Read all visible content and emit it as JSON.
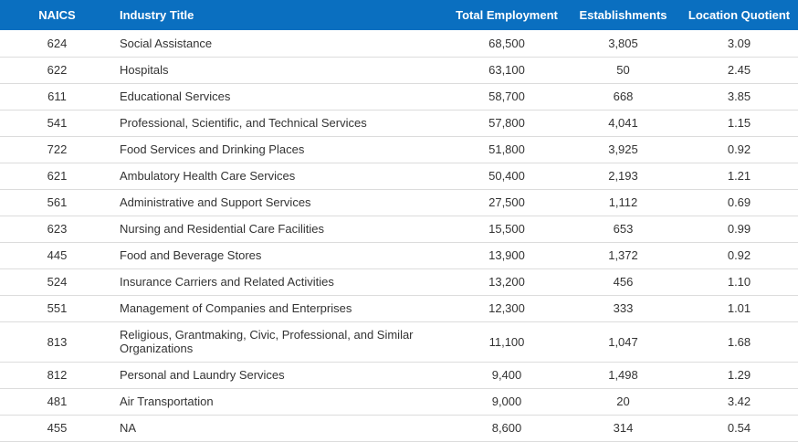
{
  "headers": {
    "naics": "NAICS",
    "title": "Industry Title",
    "employment": "Total Employment",
    "establishments": "Establishments",
    "lq": "Location Quotient"
  },
  "rows": [
    {
      "naics": "624",
      "title": "Social Assistance",
      "employment": "68,500",
      "establishments": "3,805",
      "lq": "3.09"
    },
    {
      "naics": "622",
      "title": "Hospitals",
      "employment": "63,100",
      "establishments": "50",
      "lq": "2.45"
    },
    {
      "naics": "611",
      "title": "Educational Services",
      "employment": "58,700",
      "establishments": "668",
      "lq": "3.85"
    },
    {
      "naics": "541",
      "title": "Professional, Scientific, and Technical Services",
      "employment": "57,800",
      "establishments": "4,041",
      "lq": "1.15"
    },
    {
      "naics": "722",
      "title": "Food Services and Drinking Places",
      "employment": "51,800",
      "establishments": "3,925",
      "lq": "0.92"
    },
    {
      "naics": "621",
      "title": "Ambulatory Health Care Services",
      "employment": "50,400",
      "establishments": "2,193",
      "lq": "1.21"
    },
    {
      "naics": "561",
      "title": "Administrative and Support Services",
      "employment": "27,500",
      "establishments": "1,112",
      "lq": "0.69"
    },
    {
      "naics": "623",
      "title": "Nursing and Residential Care Facilities",
      "employment": "15,500",
      "establishments": "653",
      "lq": "0.99"
    },
    {
      "naics": "445",
      "title": "Food and Beverage Stores",
      "employment": "13,900",
      "establishments": "1,372",
      "lq": "0.92"
    },
    {
      "naics": "524",
      "title": "Insurance Carriers and Related Activities",
      "employment": "13,200",
      "establishments": "456",
      "lq": "1.10"
    },
    {
      "naics": "551",
      "title": "Management of Companies and Enterprises",
      "employment": "12,300",
      "establishments": "333",
      "lq": "1.01"
    },
    {
      "naics": "813",
      "title": "Religious, Grantmaking, Civic, Professional, and Similar Organizations",
      "employment": "11,100",
      "establishments": "1,047",
      "lq": "1.68"
    },
    {
      "naics": "812",
      "title": "Personal and Laundry Services",
      "employment": "9,400",
      "establishments": "1,498",
      "lq": "1.29"
    },
    {
      "naics": "481",
      "title": "Air Transportation",
      "employment": "9,000",
      "establishments": "20",
      "lq": "3.42"
    },
    {
      "naics": "455",
      "title": "NA",
      "employment": "8,600",
      "establishments": "314",
      "lq": "0.54"
    }
  ]
}
